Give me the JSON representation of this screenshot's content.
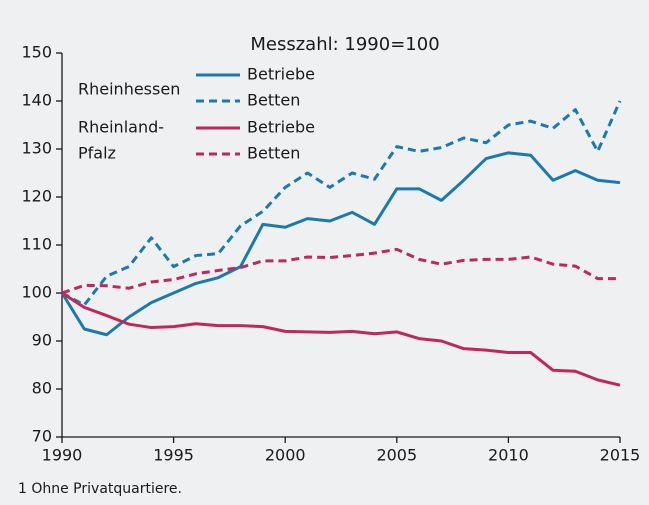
{
  "chart_data": {
    "type": "line",
    "title": "Messzahl: 1990=100",
    "footnote": "1 Ohne Privatquartiere.",
    "x": [
      1990,
      1991,
      1992,
      1993,
      1994,
      1995,
      1996,
      1997,
      1998,
      1999,
      2000,
      2001,
      2002,
      2003,
      2004,
      2005,
      2006,
      2007,
      2008,
      2009,
      2010,
      2011,
      2012,
      2013,
      2014,
      2015
    ],
    "groups": [
      {
        "lines": [
          "Rheinhessen"
        ],
        "color": "#1a7ab0"
      },
      {
        "lines": [
          "Rheinland-",
          "Pfalz"
        ],
        "color": "#c0285a"
      }
    ],
    "series": [
      {
        "name": "Betriebe",
        "group": 0,
        "dashed": false,
        "color": "#1a7ab0",
        "values": [
          100,
          92.5,
          91.3,
          95,
          98,
          100,
          102,
          103.2,
          105.5,
          114.3,
          113.7,
          115.5,
          115,
          116.8,
          114.3,
          121.7,
          121.7,
          119.3,
          123.5,
          128,
          129.2,
          128.7,
          123.5,
          125.5,
          123.5,
          123
        ]
      },
      {
        "name": "Betten",
        "group": 0,
        "dashed": true,
        "color": "#1a7ab0",
        "values": [
          100,
          97.5,
          103.5,
          105.5,
          111.5,
          105.5,
          107.8,
          108.2,
          114,
          117,
          122,
          125,
          122,
          125,
          123.7,
          130.5,
          129.5,
          130.3,
          132.3,
          131.3,
          135,
          135.8,
          134.3,
          138.2,
          129.5,
          140
        ]
      },
      {
        "name": "Betriebe",
        "group": 1,
        "dashed": false,
        "color": "#c0285a",
        "values": [
          100,
          97,
          95.3,
          93.5,
          92.8,
          93,
          93.6,
          93.2,
          93.2,
          93,
          92,
          91.9,
          91.8,
          92,
          91.5,
          91.9,
          90.5,
          90,
          88.4,
          88.1,
          87.6,
          87.6,
          83.9,
          83.7,
          81.9,
          80.8
        ]
      },
      {
        "name": "Betten",
        "group": 1,
        "dashed": true,
        "color": "#c0285a",
        "values": [
          100,
          101.6,
          101.5,
          101,
          102.3,
          102.8,
          104,
          104.7,
          105.3,
          106.7,
          106.7,
          107.5,
          107.4,
          107.8,
          108.3,
          109.1,
          107,
          106,
          106.8,
          107,
          107,
          107.5,
          106,
          105.6,
          103,
          103
        ]
      }
    ],
    "xlim": [
      1990,
      2015
    ],
    "xticks": [
      1990,
      1995,
      2000,
      2005,
      2010,
      2015
    ],
    "ylim": [
      70,
      150
    ],
    "yticks": [
      70,
      80,
      90,
      100,
      110,
      120,
      130,
      140,
      150
    ],
    "grid": false
  }
}
